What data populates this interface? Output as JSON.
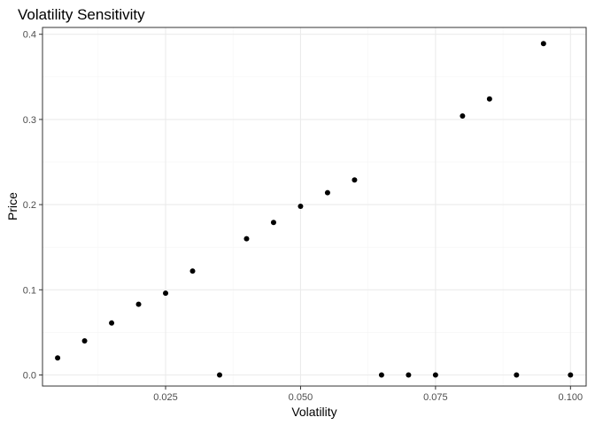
{
  "chart_data": {
    "type": "scatter",
    "title": "Volatility Sensitivity",
    "xlabel": "Volatility",
    "ylabel": "Price",
    "xlim": [
      0.0022,
      0.1029
    ],
    "ylim": [
      -0.013,
      0.408
    ],
    "x_ticks": [
      0.025,
      0.05,
      0.075,
      0.1
    ],
    "x_tick_labels": [
      "0.025",
      "0.050",
      "0.075",
      "0.100"
    ],
    "y_ticks": [
      0.0,
      0.1,
      0.2,
      0.3,
      0.4
    ],
    "y_tick_labels": [
      "0.0",
      "0.1",
      "0.2",
      "0.3",
      "0.4"
    ],
    "grid": true,
    "points": [
      {
        "x": 0.005,
        "y": 0.02
      },
      {
        "x": 0.01,
        "y": 0.04
      },
      {
        "x": 0.015,
        "y": 0.061
      },
      {
        "x": 0.02,
        "y": 0.083
      },
      {
        "x": 0.025,
        "y": 0.096
      },
      {
        "x": 0.03,
        "y": 0.122
      },
      {
        "x": 0.035,
        "y": 0.0
      },
      {
        "x": 0.04,
        "y": 0.16
      },
      {
        "x": 0.045,
        "y": 0.179
      },
      {
        "x": 0.05,
        "y": 0.198
      },
      {
        "x": 0.055,
        "y": 0.214
      },
      {
        "x": 0.06,
        "y": 0.229
      },
      {
        "x": 0.065,
        "y": 0.0
      },
      {
        "x": 0.07,
        "y": 0.0
      },
      {
        "x": 0.075,
        "y": 0.0
      },
      {
        "x": 0.08,
        "y": 0.304
      },
      {
        "x": 0.085,
        "y": 0.324
      },
      {
        "x": 0.09,
        "y": 0.0
      },
      {
        "x": 0.095,
        "y": 0.389
      },
      {
        "x": 0.1,
        "y": 0.0
      }
    ]
  },
  "colors": {
    "point": "#000000",
    "panel_border": "#333333",
    "grid_major": "#ebebeb",
    "grid_minor": "#f5f5f5",
    "tick": "#333333"
  }
}
